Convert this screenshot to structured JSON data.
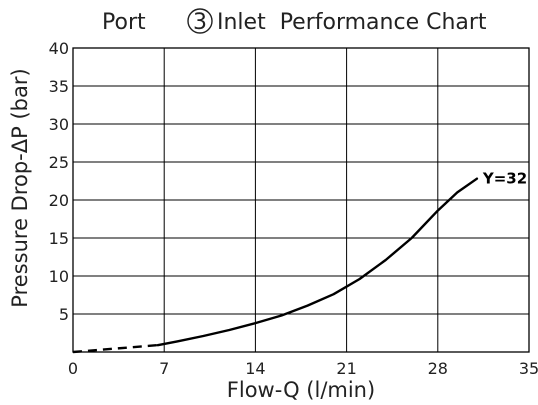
{
  "chart_data": {
    "type": "line",
    "title_prefix": "Port",
    "title_port": "3",
    "title_suffix": "Inlet  Performance Chart",
    "xlabel": "Flow-Q (l/min)",
    "ylabel": "Pressure Drop-ΔP (bar)",
    "xlim": [
      0,
      35
    ],
    "ylim": [
      0,
      40
    ],
    "x_ticks": [
      0,
      7,
      14,
      21,
      28,
      35
    ],
    "y_ticks": [
      5,
      10,
      15,
      20,
      25,
      30,
      35,
      40
    ],
    "grid": true,
    "series": [
      {
        "name": "Y=32",
        "x": [
          0,
          6.5,
          8,
          10,
          12,
          14,
          16,
          18,
          20,
          22,
          24,
          26,
          28,
          29.5,
          31
        ],
        "y": [
          0,
          0.9,
          1.4,
          2.1,
          2.9,
          3.8,
          4.8,
          6.1,
          7.6,
          9.6,
          12.1,
          15.0,
          18.6,
          21.0,
          22.8
        ]
      }
    ]
  }
}
